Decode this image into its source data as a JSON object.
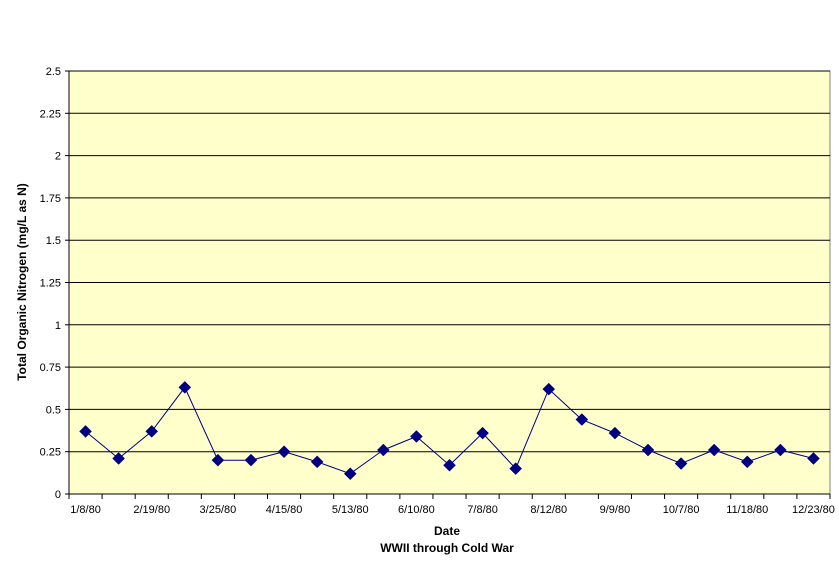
{
  "chart_data": {
    "type": "line",
    "title": "",
    "xlabel": "Date",
    "xlabel_sub": "WWII through Cold War",
    "ylabel": "Total Organic Nitrogen (mg/L as N)",
    "ylim": [
      0,
      2.5
    ],
    "y_ticks": [
      "0",
      "0.25",
      "0.5",
      "0.75",
      "1",
      "1.25",
      "1.5",
      "1.75",
      "2",
      "2.25",
      "2.5"
    ],
    "x_tick_labels": [
      "1/8/80",
      "2/19/80",
      "3/25/80",
      "4/15/80",
      "5/13/80",
      "6/10/80",
      "7/8/80",
      "8/12/80",
      "9/9/80",
      "10/7/80",
      "11/18/80",
      "12/23/80"
    ],
    "grid": "horizontal",
    "legend": "none",
    "plot_background": "#ffffcc",
    "series_color": "#000080",
    "marker": "diamond",
    "series": [
      {
        "values": [
          0.37,
          0.21,
          0.37,
          0.63,
          0.2,
          0.2,
          0.25,
          0.19,
          0.12,
          0.26,
          0.34,
          0.17,
          0.36,
          0.15,
          0.62,
          0.44,
          0.36,
          0.26,
          0.18,
          0.26,
          0.19,
          0.26,
          0.21
        ]
      }
    ]
  }
}
